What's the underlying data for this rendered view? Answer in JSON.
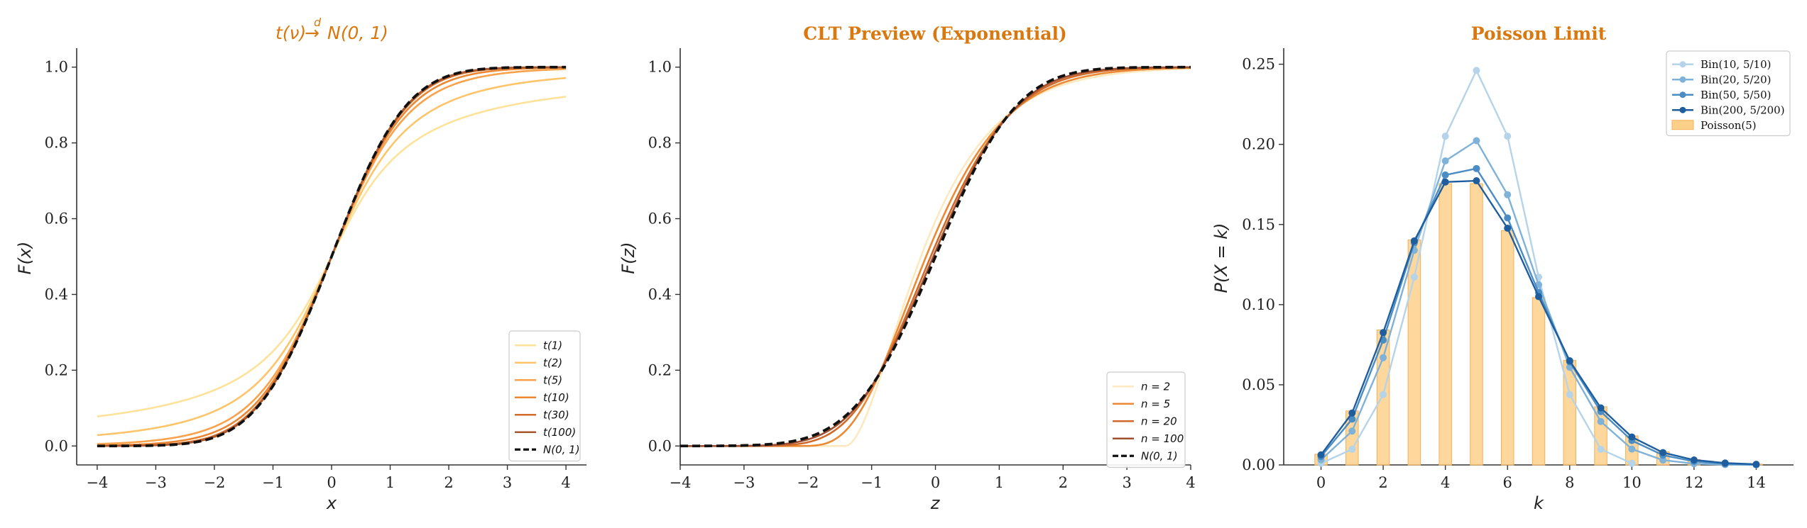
{
  "chart_data": [
    {
      "type": "line",
      "title": "t(ν) →ᵈ N(0, 1)",
      "title_parts": {
        "lhs": "t(ν)",
        "arrow": "→",
        "arrow_label": "d",
        "rhs": "N(0, 1)"
      },
      "xlabel": "x",
      "ylabel": "F(x)",
      "xlim": [
        -4.35,
        4.35
      ],
      "ylim": [
        -0.05,
        1.05
      ],
      "xticks": [
        "−4",
        "−3",
        "−2",
        "−1",
        "0",
        "1",
        "2",
        "3",
        "4"
      ],
      "yticks": [
        "0.0",
        "0.2",
        "0.4",
        "0.6",
        "0.8",
        "1.0"
      ],
      "legend_position": "lower-right",
      "series": [
        {
          "name": "t(1)",
          "df": 1,
          "color": "#fde29a"
        },
        {
          "name": "t(2)",
          "df": 2,
          "color": "#fdc46a"
        },
        {
          "name": "t(5)",
          "df": 5,
          "color": "#f9a24b"
        },
        {
          "name": "t(10)",
          "df": 10,
          "color": "#eb8733"
        },
        {
          "name": "t(30)",
          "df": 30,
          "color": "#d26b2a"
        },
        {
          "name": "t(100)",
          "df": 100,
          "color": "#a8562c"
        },
        {
          "name": "N(0, 1)",
          "df": null,
          "color": "#111111",
          "dashed": true
        }
      ]
    },
    {
      "type": "line",
      "title": "CLT Preview (Exponential)",
      "xlabel": "z",
      "ylabel": "F(z)",
      "xlim": [
        -4,
        4
      ],
      "ylim": [
        -0.05,
        1.05
      ],
      "xticks": [
        "−4",
        "−3",
        "−2",
        "−1",
        "0",
        "1",
        "2",
        "3",
        "4"
      ],
      "yticks": [
        "0.0",
        "0.2",
        "0.4",
        "0.6",
        "0.8",
        "1.0"
      ],
      "legend_position": "lower-right",
      "series": [
        {
          "name": "n = 2",
          "n": 2,
          "color": "#fde9c0"
        },
        {
          "name": "n = 5",
          "n": 5,
          "color": "#eb8a33"
        },
        {
          "name": "n = 20",
          "n": 20,
          "color": "#cf6a2b"
        },
        {
          "name": "n = 100",
          "n": 100,
          "color": "#9f5030"
        },
        {
          "name": "N(0, 1)",
          "n": null,
          "color": "#111111",
          "dashed": true
        }
      ]
    },
    {
      "type": "bar",
      "title": "Poisson Limit",
      "xlabel": "k",
      "ylabel": "P(X = k)",
      "xlim": [
        -1.2,
        15.2
      ],
      "ylim": [
        0,
        0.26
      ],
      "xticks": [
        "0",
        "2",
        "4",
        "6",
        "8",
        "10",
        "12",
        "14"
      ],
      "yticks": [
        "0.00",
        "0.05",
        "0.10",
        "0.15",
        "0.20",
        "0.25"
      ],
      "legend_position": "upper-right",
      "k": [
        0,
        1,
        2,
        3,
        4,
        5,
        6,
        7,
        8,
        9,
        10,
        11,
        12,
        13,
        14
      ],
      "bars": {
        "name": "Poisson(5)",
        "color": "#fdd08a",
        "values": [
          0.0067,
          0.0337,
          0.0842,
          0.1404,
          0.1755,
          0.1755,
          0.1462,
          0.1044,
          0.0653,
          0.0363,
          0.0181,
          0.0082,
          0.0034,
          0.0013,
          0.0005
        ]
      },
      "series": [
        {
          "name": "Bin(10, 5/10)",
          "color": "#b5d4e9",
          "values": [
            0.001,
            0.0098,
            0.0439,
            0.1172,
            0.2051,
            0.2461,
            0.2051,
            0.1172,
            0.0439,
            0.0098,
            0.001
          ]
        },
        {
          "name": "Bin(20, 5/20)",
          "color": "#7fb2d8",
          "values": [
            0.0032,
            0.0211,
            0.0669,
            0.1339,
            0.1897,
            0.2023,
            0.1686,
            0.1124,
            0.0609,
            0.0271,
            0.0099,
            0.003,
            0.0008,
            0.0002,
            0.0
          ]
        },
        {
          "name": "Bin(50, 5/50)",
          "color": "#4a8cc4",
          "values": [
            0.0052,
            0.0286,
            0.0779,
            0.1386,
            0.1809,
            0.1849,
            0.1541,
            0.1076,
            0.0643,
            0.0333,
            0.0152,
            0.0061,
            0.0022,
            0.0007,
            0.0002
          ]
        },
        {
          "name": "Bin(200, 5/200)",
          "color": "#1f5e9e",
          "values": [
            0.0063,
            0.0324,
            0.0826,
            0.1398,
            0.1765,
            0.1773,
            0.1477,
            0.105,
            0.065,
            0.0356,
            0.0174,
            0.0077,
            0.0031,
            0.0012,
            0.0004
          ]
        }
      ]
    }
  ]
}
